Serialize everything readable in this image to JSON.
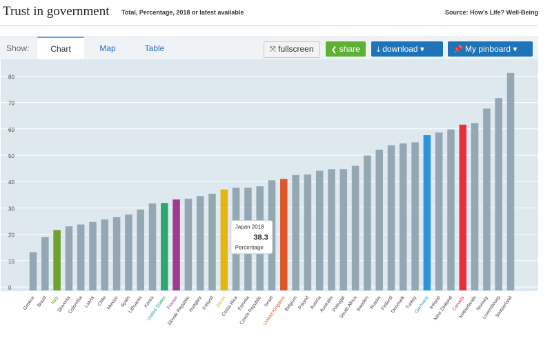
{
  "header": {
    "title": "Trust in government",
    "subtitle": "Total, Percentage, 2018 or latest available",
    "source": "Source: How's Life? Well-Being"
  },
  "toolbar": {
    "show_label": "Show:",
    "tabs": [
      {
        "label": "Chart"
      },
      {
        "label": "Map"
      },
      {
        "label": "Table"
      }
    ],
    "fullscreen_label": "fullscreen",
    "share_label": "share",
    "download_label": "download ▾",
    "pinboard_label": "My pinboard ▾"
  },
  "tooltip": {
    "country": "Japan 2018",
    "value": "38.3",
    "unit": "Percentage"
  },
  "colors": {
    "default": "#93a8b3",
    "Italy": "#6ea22d",
    "United States": "#2aa870",
    "France": "#a1398f",
    "Japan": "#e6b511",
    "United Kingdom": "#e0562b",
    "Germany": "#2a95dc",
    "Canada": "#e8303b",
    "plot_bg": "#dde8ef"
  },
  "chart_data": {
    "type": "bar",
    "categories": [
      "Greece",
      "Brazil",
      "Italy",
      "Slovenia",
      "Colombia",
      "Latvia",
      "Chile",
      "Mexico",
      "Spain",
      "Lithuania",
      "Korea",
      "United States",
      "France",
      "Slovak Republic",
      "Hungary",
      "Iceland",
      "Japan",
      "Costa Rica",
      "Estonia",
      "Czech Republic",
      "Israel",
      "United Kingdom",
      "Belgium",
      "Poland",
      "Austria",
      "Australia",
      "Portugal",
      "South Africa",
      "Sweden",
      "Russia",
      "Finland",
      "Denmark",
      "Turkey",
      "Germany",
      "Ireland",
      "New Zealand",
      "Canada",
      "Netherlands",
      "Norway",
      "Luxembourg",
      "Switzerland"
    ],
    "values": [
      14.5,
      20.2,
      22.9,
      24.3,
      25,
      26,
      26.9,
      27.8,
      28.8,
      30.7,
      33,
      33.2,
      34.5,
      34.8,
      35.8,
      36.7,
      38.3,
      39,
      39,
      39.5,
      41.8,
      42.3,
      43.8,
      44,
      45.4,
      46,
      46,
      47.3,
      51.2,
      53.4,
      55.1,
      55.8,
      56.2,
      58.9,
      59.9,
      61.1,
      62.9,
      63.5,
      69,
      73,
      82.5
    ],
    "ylim": [
      0,
      88
    ],
    "yticks": [
      0,
      10,
      20,
      30,
      40,
      50,
      60,
      70,
      80
    ],
    "grid": true,
    "legend": "none"
  }
}
